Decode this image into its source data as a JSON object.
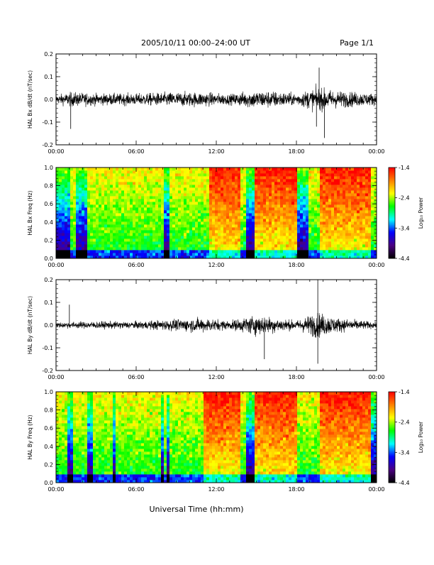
{
  "header": {
    "title": "2005/10/11  00:00–24:00 UT",
    "page": "Page 1/1"
  },
  "footer": {
    "xlabel": "Universal Time (hh:mm)"
  },
  "colors": {
    "trace": "#000000",
    "colormap": [
      "#000000",
      "#4b0082",
      "#0000ff",
      "#00ffff",
      "#00ff00",
      "#ffff00",
      "#ff7f00",
      "#ff0000"
    ]
  },
  "chart_data": [
    {
      "type": "line",
      "ylabel": "HAL Bx dB/dt (nT/sec)",
      "xlim": [
        0,
        24
      ],
      "ylim": [
        -0.2,
        0.2
      ],
      "yticks": [
        "0.2",
        "0.1",
        "0.0",
        "-0.1",
        "-0.2"
      ],
      "xticks": [
        "00:00",
        "06:00",
        "12:00",
        "18:00",
        "00:00"
      ],
      "series": [
        {
          "values_envelope": [
            {
              "x": 0,
              "y": 0.03
            },
            {
              "x": 1.2,
              "y": 0.05
            },
            {
              "x": 3,
              "y": 0.04
            },
            {
              "x": 6,
              "y": 0.04
            },
            {
              "x": 9,
              "y": 0.05
            },
            {
              "x": 11,
              "y": 0.05
            },
            {
              "x": 13,
              "y": 0.035
            },
            {
              "x": 14.5,
              "y": 0.06
            },
            {
              "x": 16,
              "y": 0.06
            },
            {
              "x": 18,
              "y": 0.04
            },
            {
              "x": 19.5,
              "y": 0.08
            },
            {
              "x": 21,
              "y": 0.06
            },
            {
              "x": 24,
              "y": 0.04
            }
          ]
        }
      ],
      "spikes": [
        {
          "x": 1.1,
          "y": -0.13
        },
        {
          "x": 19.7,
          "y": 0.14
        },
        {
          "x": 20.1,
          "y": -0.17
        },
        {
          "x": 19.5,
          "y": -0.12
        }
      ]
    },
    {
      "type": "heatmap",
      "ylabel": "HAL Bx Freq (Hz)",
      "xlim": [
        0,
        24
      ],
      "ylim": [
        0,
        1.0
      ],
      "yticks": [
        "1.0",
        "0.8",
        "0.6",
        "0.4",
        "0.2",
        "0.0"
      ],
      "xticks": [
        "00:00",
        "06:00",
        "12:00",
        "18:00",
        "00:00"
      ],
      "colorbar": {
        "label": "Log₁₀ Power",
        "ticks": [
          "-1.4",
          "-2.4",
          "-3.4",
          "-4.4"
        ],
        "range": [
          -4.4,
          -1.4
        ]
      },
      "active_intervals": [
        [
          11.5,
          13.8
        ],
        [
          14.8,
          18.0
        ],
        [
          19.8,
          23.5
        ]
      ],
      "quiet_intervals": [
        [
          0,
          1.0
        ],
        [
          1.5,
          2.3
        ],
        [
          8.0,
          8.6
        ],
        [
          14.2,
          14.8
        ],
        [
          18.0,
          18.8
        ]
      ]
    },
    {
      "type": "line",
      "ylabel": "HAL By dB/dt (nT/sec)",
      "xlim": [
        0,
        24
      ],
      "ylim": [
        -0.2,
        0.2
      ],
      "yticks": [
        "0.2",
        "0.1",
        "0.0",
        "-0.1",
        "-0.2"
      ],
      "xticks": [
        "00:00",
        "06:00",
        "12:00",
        "18:00",
        "00:00"
      ],
      "series": [
        {
          "values_envelope": [
            {
              "x": 0,
              "y": 0.02
            },
            {
              "x": 3,
              "y": 0.025
            },
            {
              "x": 6,
              "y": 0.025
            },
            {
              "x": 9,
              "y": 0.04
            },
            {
              "x": 11,
              "y": 0.05
            },
            {
              "x": 13,
              "y": 0.03
            },
            {
              "x": 15,
              "y": 0.07
            },
            {
              "x": 16.5,
              "y": 0.05
            },
            {
              "x": 18,
              "y": 0.03
            },
            {
              "x": 19.5,
              "y": 0.09
            },
            {
              "x": 21,
              "y": 0.05
            },
            {
              "x": 24,
              "y": 0.02
            }
          ]
        }
      ],
      "spikes": [
        {
          "x": 1.0,
          "y": 0.09
        },
        {
          "x": 19.6,
          "y": 0.2
        },
        {
          "x": 19.6,
          "y": -0.17
        },
        {
          "x": 15.6,
          "y": -0.15
        }
      ]
    },
    {
      "type": "heatmap",
      "ylabel": "HAL By Freq (Hz)",
      "xlim": [
        0,
        24
      ],
      "ylim": [
        0,
        1.0
      ],
      "yticks": [
        "1.0",
        "0.8",
        "0.6",
        "0.4",
        "0.2",
        "0.0"
      ],
      "xticks": [
        "00:00",
        "06:00",
        "12:00",
        "18:00",
        "00:00"
      ],
      "colorbar": {
        "label": "Log₁₀ Power",
        "ticks": [
          "-1.4",
          "-2.4",
          "-3.4",
          "-4.4"
        ],
        "range": [
          -4.4,
          -1.4
        ]
      },
      "active_intervals": [
        [
          11.0,
          13.8
        ],
        [
          14.8,
          18.0
        ],
        [
          19.8,
          23.5
        ]
      ],
      "quiet_intervals": [
        [
          0.8,
          1.2
        ],
        [
          2.4,
          2.7
        ],
        [
          4.2,
          4.5
        ],
        [
          7.8,
          8.1
        ],
        [
          8.3,
          8.6
        ],
        [
          14.2,
          14.8
        ],
        [
          23.5,
          24
        ]
      ]
    }
  ]
}
